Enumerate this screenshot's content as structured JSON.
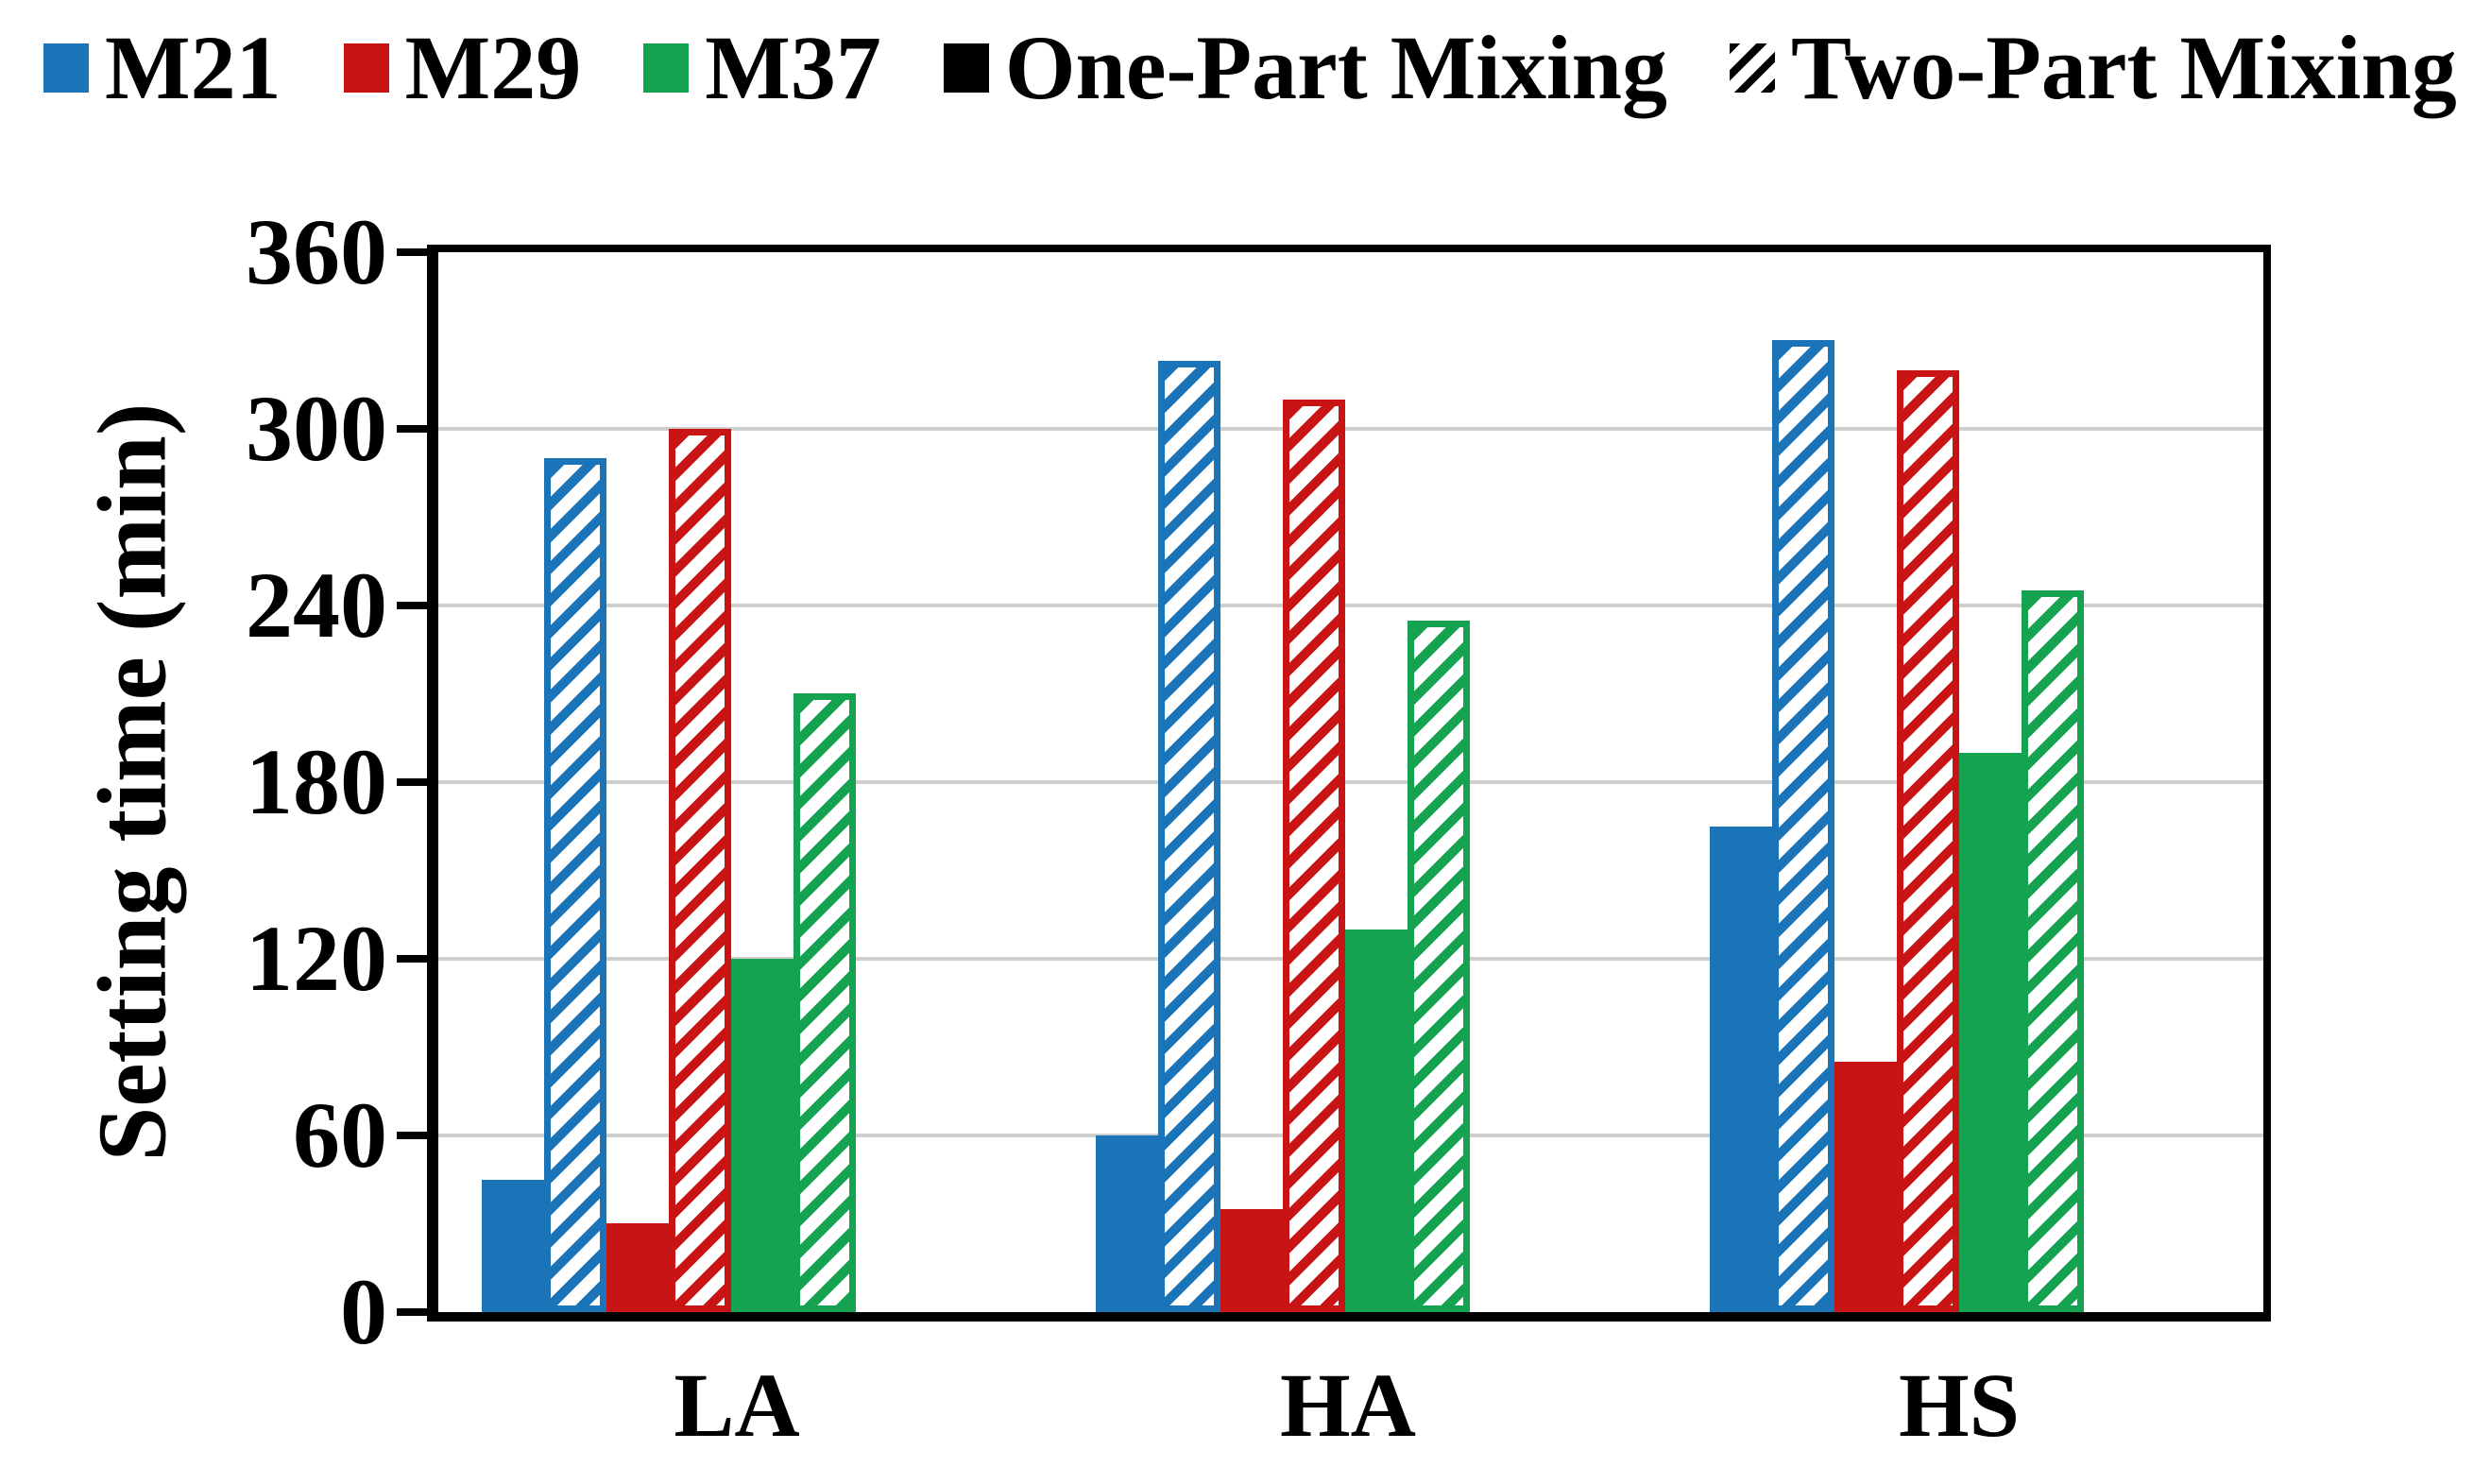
{
  "legend": {
    "items": [
      {
        "label": "M21",
        "color": "#1B73B8",
        "type": "solid"
      },
      {
        "label": "M29",
        "color": "#C81414",
        "type": "solid"
      },
      {
        "label": "M37",
        "color": "#16A351",
        "type": "solid"
      },
      {
        "label": "One-Part Mixing",
        "color": "#000000",
        "type": "solid"
      },
      {
        "label": "Two-Part Mixing",
        "color": "#000000",
        "type": "hatched"
      }
    ]
  },
  "chart_data": {
    "type": "bar",
    "title": "",
    "xlabel": "",
    "ylabel": "Setting time (min)",
    "categories": [
      "LA",
      "HA",
      "HS"
    ],
    "yticks": [
      0,
      60,
      120,
      180,
      240,
      300,
      360
    ],
    "ylim": [
      0,
      360
    ],
    "grid": "horizontal",
    "grid_color": "#CFCFCF",
    "legend_position": "top",
    "series": [
      {
        "name": "M21 One-Part Mixing",
        "color": "#1B73B8",
        "pattern": "solid",
        "values": [
          45,
          60,
          165
        ]
      },
      {
        "name": "M21 Two-Part Mixing",
        "color": "#1B73B8",
        "pattern": "hatched",
        "values": [
          290,
          323,
          330
        ]
      },
      {
        "name": "M29 One-Part Mixing",
        "color": "#C81414",
        "pattern": "solid",
        "values": [
          30,
          35,
          85
        ]
      },
      {
        "name": "M29 Two-Part Mixing",
        "color": "#C81414",
        "pattern": "hatched",
        "values": [
          300,
          310,
          320
        ]
      },
      {
        "name": "M37 One-Part Mixing",
        "color": "#16A351",
        "pattern": "solid",
        "values": [
          120,
          130,
          190
        ]
      },
      {
        "name": "M37 Two-Part Mixing",
        "color": "#16A351",
        "pattern": "hatched",
        "values": [
          210,
          235,
          245
        ]
      }
    ]
  }
}
